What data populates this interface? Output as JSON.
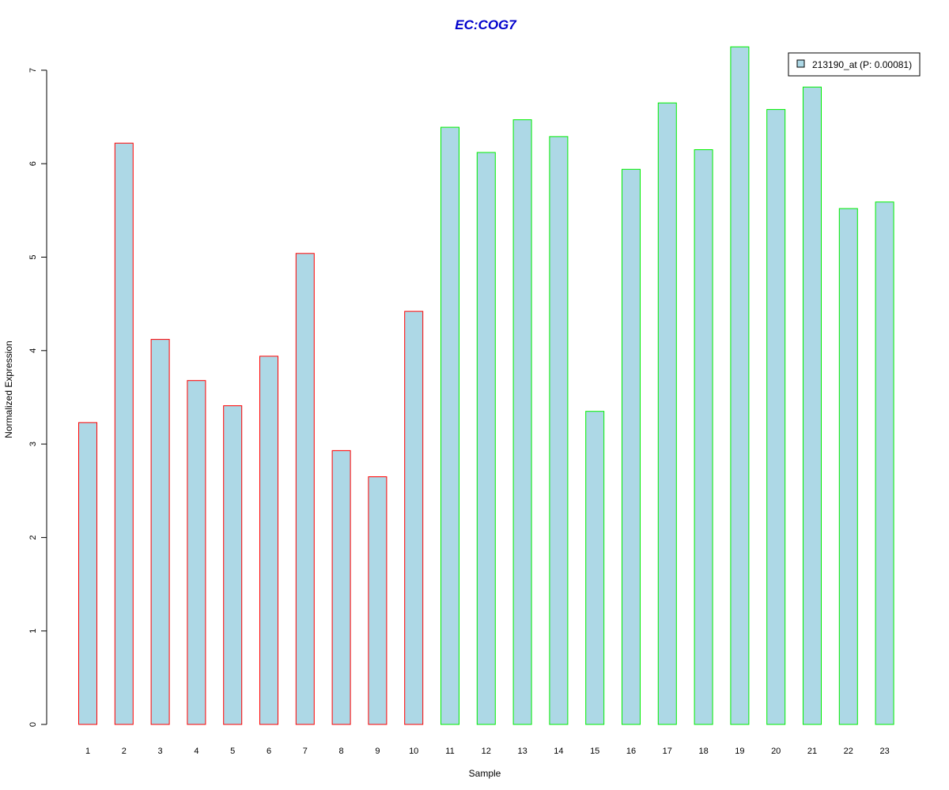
{
  "chart_data": {
    "type": "bar",
    "title": "EC:COG7",
    "xlabel": "Sample",
    "ylabel": "Normalized Expression",
    "categories": [
      "1",
      "2",
      "3",
      "4",
      "5",
      "6",
      "7",
      "8",
      "9",
      "10",
      "11",
      "12",
      "13",
      "14",
      "15",
      "16",
      "17",
      "18",
      "19",
      "20",
      "21",
      "22",
      "23"
    ],
    "values": [
      3.23,
      6.22,
      4.12,
      3.68,
      3.41,
      3.94,
      5.04,
      2.93,
      2.65,
      4.42,
      6.39,
      6.12,
      6.47,
      6.29,
      3.35,
      5.94,
      6.65,
      6.15,
      7.25,
      6.58,
      6.82,
      5.52,
      5.59
    ],
    "groups": [
      "red",
      "red",
      "red",
      "red",
      "red",
      "red",
      "red",
      "red",
      "red",
      "red",
      "green",
      "green",
      "green",
      "green",
      "green",
      "green",
      "green",
      "green",
      "green",
      "green",
      "green",
      "green",
      "green"
    ],
    "ylim": [
      0,
      7
    ],
    "yticks": [
      0,
      1,
      2,
      3,
      4,
      5,
      6,
      7
    ],
    "grid": false,
    "legend": {
      "placement": "top-right",
      "entries": [
        {
          "label": "213190_at (P: 0.00081)"
        }
      ]
    },
    "colors": {
      "fill": "#add8e6",
      "red": "#ff0000",
      "green": "#00ee00",
      "title": "#0000cc"
    }
  }
}
